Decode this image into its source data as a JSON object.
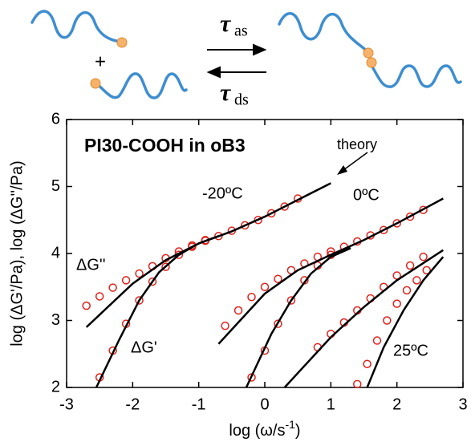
{
  "diagram": {
    "plus": "+",
    "tau": "τ",
    "forward_sub": "as",
    "backward_sub": "ds"
  },
  "chart_data": {
    "type": "scatter-line",
    "title": "PI30-COOH in oB3",
    "ylabel": "log (ΔG'/Pa), log (ΔG''/Pa)",
    "xlabel": {
      "text": "log (ω/s",
      "sup": "-1",
      "end": ")"
    },
    "annotations": [
      "theory",
      "-20ºC",
      "0ºC",
      "25ºC",
      "ΔG''",
      "ΔG'"
    ],
    "xlim": [
      -3,
      3
    ],
    "ylim": [
      2,
      6
    ],
    "xticks": [
      -3,
      -2,
      -1,
      0,
      1,
      2,
      3
    ],
    "yticks": [
      2,
      3,
      4,
      5,
      6
    ],
    "series": [
      {
        "marker": "circle",
        "color": "#e0201b",
        "x": [
          -2.7,
          -2.5,
          -2.3,
          -2.1,
          -1.9,
          -1.7,
          -1.5,
          -1.3,
          -1.1,
          -0.9,
          -0.7,
          -0.5,
          -0.3,
          -0.1,
          0.1,
          0.3,
          0.5
        ],
        "values": [
          3.22,
          3.36,
          3.49,
          3.6,
          3.7,
          3.81,
          3.93,
          4.03,
          4.12,
          4.2,
          4.26,
          4.34,
          4.42,
          4.5,
          4.6,
          4.7,
          4.82
        ]
      },
      {
        "marker": "circle",
        "color": "#e0201b",
        "x": [
          -2.5,
          -2.3,
          -2.1,
          -1.9,
          -1.7,
          -1.5,
          -1.3,
          -1.1,
          -0.9
        ],
        "values": [
          2.15,
          2.55,
          2.95,
          3.3,
          3.58,
          3.8,
          3.98,
          4.1,
          4.19
        ]
      },
      {
        "marker": "line",
        "color": "#000000",
        "x": [
          -2.7,
          -2.0,
          -1.5,
          -1.0,
          -0.5,
          0,
          0.5,
          1.0
        ],
        "values": [
          2.9,
          3.55,
          3.9,
          4.15,
          4.33,
          4.55,
          4.8,
          5.05
        ]
      },
      {
        "marker": "line",
        "color": "#000000",
        "x": [
          -2.55,
          -2.2,
          -1.9,
          -1.6,
          -1.3,
          -1.0,
          -0.7
        ],
        "values": [
          2.0,
          2.72,
          3.3,
          3.72,
          3.98,
          4.15,
          4.26
        ]
      },
      {
        "marker": "circle",
        "color": "#e0201b",
        "x": [
          -0.6,
          -0.4,
          -0.2,
          0,
          0.2,
          0.4,
          0.6,
          0.8,
          1.0,
          1.2,
          1.4,
          1.6,
          1.8,
          2.0,
          2.2,
          2.4
        ],
        "values": [
          2.92,
          3.15,
          3.35,
          3.5,
          3.62,
          3.75,
          3.85,
          3.95,
          4.03,
          4.1,
          4.18,
          4.27,
          4.35,
          4.45,
          4.55,
          4.65
        ]
      },
      {
        "marker": "circle",
        "color": "#e0201b",
        "x": [
          -0.2,
          0,
          0.2,
          0.4,
          0.6,
          0.8,
          1.0
        ],
        "values": [
          2.15,
          2.55,
          2.95,
          3.3,
          3.6,
          3.82,
          3.98
        ]
      },
      {
        "marker": "line",
        "color": "#000000",
        "x": [
          -0.7,
          0,
          0.5,
          1,
          1.5,
          2,
          2.7
        ],
        "values": [
          2.65,
          3.4,
          3.75,
          3.98,
          4.2,
          4.45,
          4.82
        ]
      },
      {
        "marker": "line",
        "color": "#000000",
        "x": [
          -0.28,
          0.1,
          0.4,
          0.7,
          1.0,
          1.3
        ],
        "values": [
          2.0,
          2.8,
          3.3,
          3.7,
          3.95,
          4.08
        ]
      },
      {
        "marker": "circle",
        "color": "#e0201b",
        "x": [
          0.8,
          1.0,
          1.2,
          1.4,
          1.6,
          1.8,
          2.0,
          2.2,
          2.4
        ],
        "values": [
          2.6,
          2.8,
          2.97,
          3.15,
          3.33,
          3.5,
          3.67,
          3.82,
          3.95
        ]
      },
      {
        "marker": "line",
        "color": "#000000",
        "x": [
          0.3,
          1.0,
          1.5,
          2.0,
          2.7
        ],
        "values": [
          2.0,
          2.75,
          3.2,
          3.6,
          4.05
        ]
      },
      {
        "marker": "circle",
        "color": "#e0201b",
        "x": [
          1.4,
          1.55,
          1.7,
          1.85,
          2.0,
          2.15,
          2.3,
          2.45
        ],
        "values": [
          2.05,
          2.35,
          2.7,
          3.0,
          3.25,
          3.45,
          3.6,
          3.75
        ]
      },
      {
        "marker": "line",
        "color": "#000000",
        "x": [
          1.55,
          1.8,
          2.1,
          2.4,
          2.7
        ],
        "values": [
          2.0,
          2.6,
          3.15,
          3.6,
          3.95
        ]
      }
    ]
  }
}
